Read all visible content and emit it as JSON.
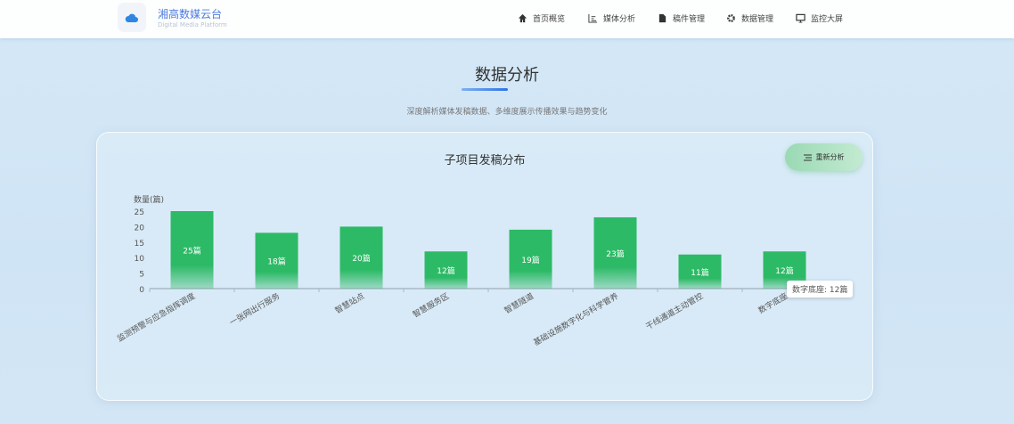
{
  "header": {
    "brand": "湘高数媒云台",
    "brand_sub": "Digital Media Platform",
    "nav": [
      {
        "label": "首页概览",
        "icon": "home-icon"
      },
      {
        "label": "媒体分析",
        "icon": "chart-icon"
      },
      {
        "label": "稿件管理",
        "icon": "document-icon"
      },
      {
        "label": "数据管理",
        "icon": "gear-icon"
      },
      {
        "label": "监控大屏",
        "icon": "monitor-icon"
      }
    ]
  },
  "page": {
    "title": "数据分析",
    "subtitle": "深度解析媒体发稿数据、多维度展示传播效果与趋势变化"
  },
  "card": {
    "title": "子项目发稿分布",
    "reanalyze_label": "重新分析"
  },
  "tooltip": "数字底座: 12篇",
  "chart_data": {
    "type": "bar",
    "title": "子项目发稿分布",
    "ylabel": "数量(篇)",
    "ylim": [
      0,
      25
    ],
    "yticks": [
      "0",
      "5",
      "10",
      "15",
      "20",
      "25"
    ],
    "categories": [
      "监测预警与应急指挥调度",
      "一张网出行服务",
      "智慧站点",
      "智慧服务区",
      "智慧隧道",
      "基础设施数字化与科学管养",
      "干线通道主动管控",
      "数字底座"
    ],
    "values": [
      25,
      18,
      20,
      12,
      19,
      23,
      11,
      12
    ],
    "data_labels": [
      "25篇",
      "18篇",
      "20篇",
      "12篇",
      "19篇",
      "23篇",
      "11篇",
      "12篇"
    ],
    "bar_color": "#2dba66",
    "grid": false
  }
}
